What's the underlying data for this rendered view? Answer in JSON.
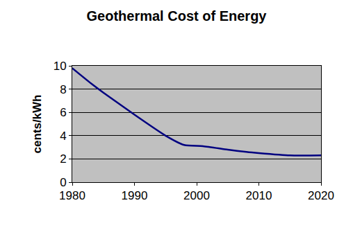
{
  "chart_data": {
    "type": "line",
    "title": "Geothermal Cost of Energy",
    "y_label": "cents/kWh",
    "x": [
      1980,
      1983,
      1985,
      1990,
      1995,
      1998,
      2001,
      2005,
      2008,
      2010,
      2015,
      2020
    ],
    "values": [
      9.8,
      8.5,
      7.7,
      5.8,
      4.0,
      3.2,
      3.1,
      2.8,
      2.6,
      2.5,
      2.3,
      2.3
    ],
    "color": "#000080",
    "line_style": "solid",
    "xlim": [
      1980,
      2020
    ],
    "xticks": [
      1980,
      1990,
      2000,
      2010,
      2020
    ],
    "ylim": [
      0,
      10
    ],
    "yticks": [
      0,
      2,
      4,
      6,
      8,
      10
    ],
    "grid": true
  }
}
